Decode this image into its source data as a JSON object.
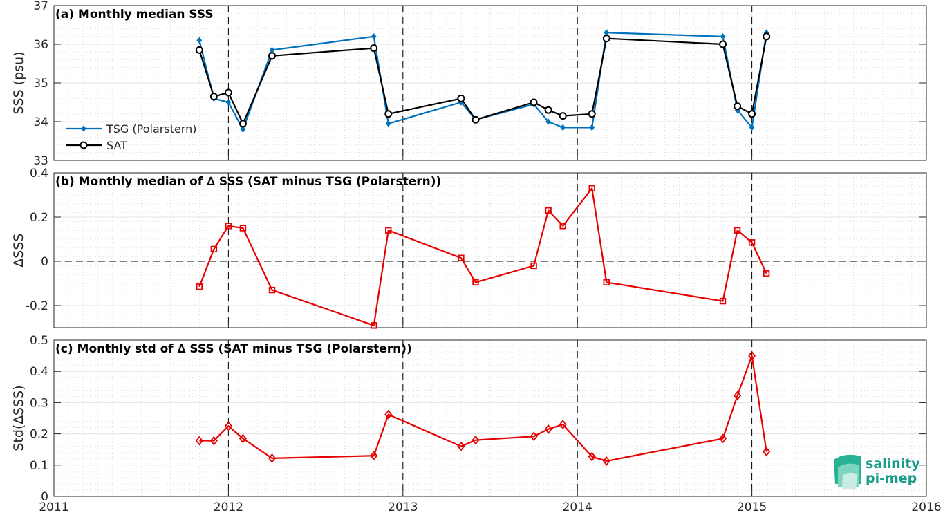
{
  "chart_data": [
    {
      "type": "line",
      "title": "(a) Monthly median SSS",
      "ylabel": "SSS (psu)",
      "xlim": [
        2011,
        2016
      ],
      "ylim": [
        33,
        37
      ],
      "yticks": [
        33,
        34,
        35,
        36,
        37
      ],
      "legend_position": "lower-left",
      "grid": true,
      "series": [
        {
          "name": "TSG (Polarstern)",
          "color": "#0072BD",
          "marker": "diamond",
          "x": [
            "2011-11",
            "2011-12",
            "2012-01",
            "2012-02",
            "2012-04",
            "2012-11",
            "2012-12",
            "2013-05",
            "2013-06",
            "2013-10",
            "2013-11",
            "2013-12",
            "2014-02",
            "2014-03",
            "2014-11",
            "2014-12",
            "2015-01",
            "2015-02"
          ],
          "values": [
            36.1,
            34.6,
            34.5,
            33.8,
            35.85,
            36.2,
            33.95,
            34.5,
            34.05,
            34.45,
            34.0,
            33.85,
            33.85,
            36.3,
            36.2,
            34.3,
            33.85,
            36.3
          ]
        },
        {
          "name": "SAT",
          "color": "#000000",
          "marker": "circle",
          "x": [
            "2011-11",
            "2011-12",
            "2012-01",
            "2012-02",
            "2012-04",
            "2012-11",
            "2012-12",
            "2013-05",
            "2013-06",
            "2013-10",
            "2013-11",
            "2013-12",
            "2014-02",
            "2014-03",
            "2014-11",
            "2014-12",
            "2015-01",
            "2015-02"
          ],
          "values": [
            35.85,
            34.65,
            34.75,
            33.95,
            35.7,
            35.9,
            34.2,
            34.6,
            34.05,
            34.5,
            34.3,
            34.15,
            34.2,
            36.15,
            36.0,
            34.4,
            34.2,
            36.2
          ]
        }
      ]
    },
    {
      "type": "line",
      "title": "(b) Monthly median of ∆ SSS (SAT minus TSG (Polarstern))",
      "ylabel": "∆SSS",
      "xlim": [
        2011,
        2016
      ],
      "ylim": [
        -0.3,
        0.4
      ],
      "yticks": [
        -0.2,
        0,
        0.2,
        0.4
      ],
      "grid": true,
      "series": [
        {
          "color": "#E60000",
          "marker": "square",
          "x": [
            "2011-11",
            "2011-12",
            "2012-01",
            "2012-02",
            "2012-04",
            "2012-11",
            "2012-12",
            "2013-05",
            "2013-06",
            "2013-10",
            "2013-11",
            "2013-12",
            "2014-02",
            "2014-03",
            "2014-11",
            "2014-12",
            "2015-01",
            "2015-02"
          ],
          "values": [
            -0.115,
            0.055,
            0.16,
            0.15,
            -0.13,
            -0.29,
            0.14,
            0.015,
            -0.095,
            -0.02,
            0.23,
            0.16,
            0.33,
            -0.095,
            -0.18,
            0.14,
            0.085,
            -0.055
          ]
        }
      ]
    },
    {
      "type": "line",
      "title": "(c) Monthly std of ∆ SSS (SAT minus TSG (Polarstern))",
      "ylabel": "Std(∆SSS)",
      "xlabel": "",
      "xlim": [
        2011,
        2016
      ],
      "xticks": [
        2011,
        2012,
        2013,
        2014,
        2015,
        2016
      ],
      "ylim": [
        0,
        0.5
      ],
      "yticks": [
        0,
        0.1,
        0.2,
        0.3,
        0.4,
        0.5
      ],
      "grid": true,
      "series": [
        {
          "color": "#E60000",
          "marker": "diamond",
          "x": [
            "2011-11",
            "2011-12",
            "2012-01",
            "2012-02",
            "2012-04",
            "2012-11",
            "2012-12",
            "2013-05",
            "2013-06",
            "2013-10",
            "2013-11",
            "2013-12",
            "2014-02",
            "2014-03",
            "2014-11",
            "2014-12",
            "2015-01",
            "2015-02"
          ],
          "values": [
            0.178,
            0.178,
            0.225,
            0.185,
            0.122,
            0.13,
            0.262,
            0.16,
            0.18,
            0.192,
            0.215,
            0.23,
            0.127,
            0.113,
            0.185,
            0.322,
            0.45,
            0.143
          ]
        }
      ]
    }
  ],
  "logo": {
    "line1": "salinity",
    "line2": "pi-mep"
  }
}
